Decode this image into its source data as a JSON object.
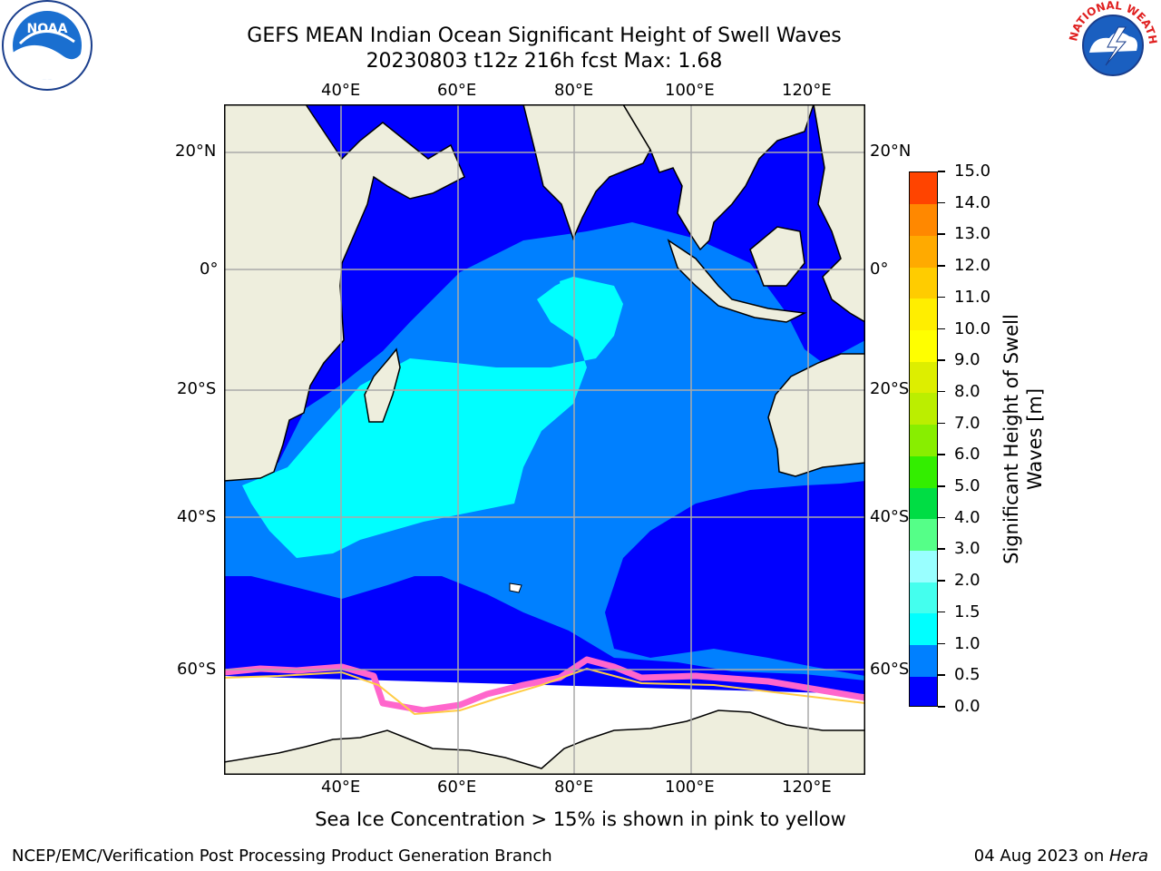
{
  "header": {
    "title_line1": "GEFS MEAN Indian Ocean Significant Height of Swell Waves",
    "title_line2": "20230803 t12z 216h fcst   Max: 1.68"
  },
  "logos": {
    "noaa_text": "NOAA",
    "nws_text": "NATIONAL WEATHER SERVICE"
  },
  "map": {
    "lon_ticks": [
      "40°E",
      "60°E",
      "80°E",
      "100°E",
      "120°E"
    ],
    "lat_ticks": [
      "20°N",
      "0°",
      "20°S",
      "40°S",
      "60°S"
    ],
    "colors": {
      "land": "#eeeedd",
      "ice": "#ffffff",
      "ice_edge": "#ff88cc",
      "swell_lt05": "#0000ff",
      "swell_05_1": "#0080ff",
      "swell_1_15": "#00ffff"
    }
  },
  "colorbar": {
    "label": "Significant Height of Swell Waves [m]",
    "ticks": [
      "0.0",
      "0.5",
      "1.0",
      "1.5",
      "2.0",
      "3.0",
      "4.0",
      "5.0",
      "6.0",
      "7.0",
      "8.0",
      "9.0",
      "10.0",
      "11.0",
      "12.0",
      "13.0",
      "14.0",
      "15.0"
    ],
    "colors": [
      "#0000ff",
      "#0080ff",
      "#00ffff",
      "#44ffee",
      "#99ffff",
      "#55ff88",
      "#00dd44",
      "#33ee00",
      "#88ee00",
      "#bbee00",
      "#ddee00",
      "#ffff00",
      "#ffee00",
      "#ffcc00",
      "#ffaa00",
      "#ff8800",
      "#ff4400",
      "#ff0000"
    ]
  },
  "footer": {
    "note": "Sea Ice Concentration > 15% is shown in pink to yellow",
    "left": "NCEP/EMC/Verification Post Processing Product Generation Branch",
    "right_date": "04 Aug 2023 on ",
    "right_host": "Hera"
  }
}
